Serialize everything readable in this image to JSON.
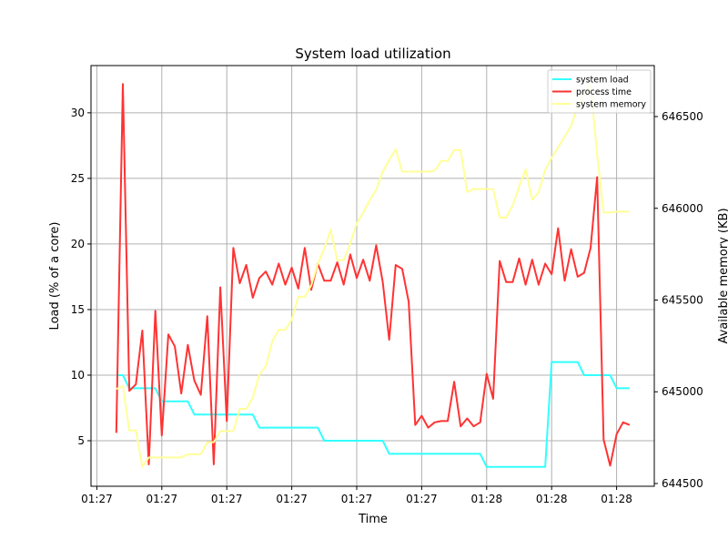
{
  "chart_data": {
    "type": "line",
    "title": "System load utilization",
    "xlabel": "Time",
    "ylabel": "Load (% of a core)",
    "ylabel_right": "Available memory (KB)",
    "grid": true,
    "legend_placement": "top-right",
    "xlim": [
      -3.9,
      82.8
    ],
    "ylim": [
      1.53,
      33.6
    ],
    "ylim_right": [
      644485,
      646778
    ],
    "x_ticks": [
      -3,
      7,
      17,
      27,
      37,
      47,
      57,
      67,
      77
    ],
    "x_tick_labels": [
      "01:27",
      "01:27",
      "01:27",
      "01:27",
      "01:27",
      "01:27",
      "01:28",
      "01:28",
      "01:28"
    ],
    "y_ticks": [
      5,
      10,
      15,
      20,
      25,
      30
    ],
    "y_tick_labels": [
      "5",
      "10",
      "15",
      "20",
      "25",
      "30"
    ],
    "y_right_ticks": [
      644500,
      645000,
      645500,
      646000,
      646500
    ],
    "y_right_tick_labels": [
      "644500",
      "645000",
      "645500",
      "646000",
      "646500"
    ],
    "x": [
      0,
      1,
      2,
      3,
      4,
      5,
      6,
      7,
      8,
      9,
      10,
      11,
      12,
      13,
      14,
      15,
      16,
      17,
      18,
      19,
      20,
      21,
      22,
      23,
      24,
      25,
      26,
      27,
      28,
      29,
      30,
      31,
      32,
      33,
      34,
      35,
      36,
      37,
      38,
      39,
      40,
      41,
      42,
      43,
      44,
      45,
      46,
      47,
      48,
      49,
      50,
      51,
      52,
      53,
      54,
      55,
      56,
      57,
      58,
      59,
      60,
      61,
      62,
      63,
      64,
      65,
      66,
      67,
      68,
      69,
      70,
      71,
      72,
      73,
      74,
      75,
      76,
      77,
      78,
      79
    ],
    "series": [
      {
        "name": "system load",
        "axis": "left",
        "color": "#33ffff",
        "values": [
          10,
          10,
          9,
          9,
          9,
          9,
          9,
          8,
          8,
          8,
          8,
          8,
          7,
          7,
          7,
          7,
          7,
          7,
          7,
          7,
          7,
          7,
          6,
          6,
          6,
          6,
          6,
          6,
          6,
          6,
          6,
          6,
          5,
          5,
          5,
          5,
          5,
          5,
          5,
          5,
          5,
          5,
          4,
          4,
          4,
          4,
          4,
          4,
          4,
          4,
          4,
          4,
          4,
          4,
          4,
          4,
          4,
          3,
          3,
          3,
          3,
          3,
          3,
          3,
          3,
          3,
          3,
          11,
          11,
          11,
          11,
          11,
          10,
          10,
          10,
          10,
          10,
          9,
          9,
          9
        ]
      },
      {
        "name": "process time",
        "axis": "left",
        "color": "#ff3333",
        "values": [
          5.6,
          32.2,
          8.8,
          9.3,
          13.4,
          3.2,
          14.9,
          5.4,
          13.1,
          12.2,
          8.6,
          12.3,
          9.6,
          8.5,
          14.5,
          3.2,
          16.7,
          6.5,
          19.7,
          17.0,
          18.4,
          15.9,
          17.4,
          17.9,
          16.9,
          18.5,
          16.9,
          18.2,
          16.6,
          19.7,
          16.5,
          18.5,
          17.2,
          17.2,
          18.6,
          16.9,
          19.2,
          17.4,
          18.8,
          17.2,
          19.9,
          17.1,
          12.7,
          18.4,
          18.1,
          15.6,
          6.2,
          6.9,
          6.0,
          6.4,
          6.5,
          6.5,
          9.5,
          6.1,
          6.7,
          6.1,
          6.4,
          10.1,
          8.2,
          18.7,
          17.1,
          17.1,
          18.9,
          16.9,
          18.8,
          16.9,
          18.5,
          17.7,
          21.2,
          17.2,
          19.6,
          17.5,
          17.8,
          19.7,
          25.1,
          5.1,
          3.1,
          5.5,
          6.4,
          6.2
        ]
      },
      {
        "name": "system memory",
        "axis": "right",
        "color": "#ffff99",
        "values": [
          645015,
          645031,
          644789,
          644789,
          644591,
          644642,
          644642,
          644642,
          644642,
          644642,
          644642,
          644659,
          644659,
          644659,
          644725,
          644725,
          644786,
          644786,
          644786,
          644907,
          644907,
          644968,
          645092,
          645139,
          645274,
          645337,
          645337,
          645393,
          645518,
          645518,
          645580,
          645696,
          645779,
          645883,
          645717,
          645717,
          645807,
          645919,
          645977,
          646043,
          646101,
          646200,
          646263,
          646322,
          646200,
          646200,
          646200,
          646200,
          646200,
          646205,
          646258,
          646258,
          646318,
          646318,
          646088,
          646105,
          646105,
          646105,
          646105,
          645949,
          645949,
          646015,
          646118,
          646212,
          646047,
          646088,
          646209,
          646275,
          646333,
          646391,
          646449,
          646557,
          646623,
          646676,
          646292,
          645977,
          645977,
          645982,
          645982,
          645982
        ]
      }
    ]
  }
}
